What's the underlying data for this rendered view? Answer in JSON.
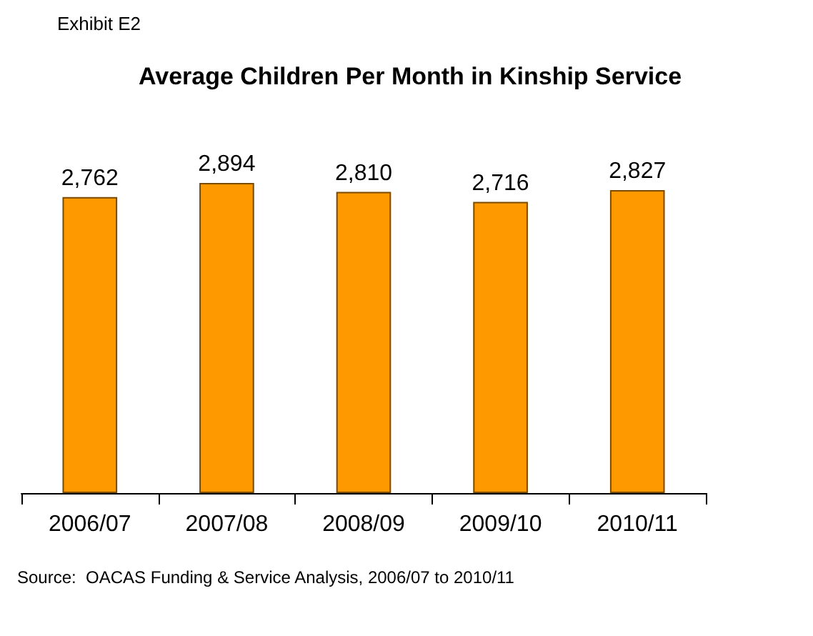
{
  "chart_data": {
    "type": "bar",
    "title": "Average Children Per Month in Kinship Service",
    "categories": [
      "2006/07",
      "2007/08",
      "2008/09",
      "2009/10",
      "2010/11"
    ],
    "values": [
      2762,
      2894,
      2810,
      2716,
      2827
    ],
    "color": "#ff9900",
    "value_labels": [
      "2,762",
      "2,894",
      "2,810",
      "2,716",
      "2,827"
    ],
    "annotations": [
      "Exhibit E2",
      "Source:  OACAS Funding & Service Analysis, 2006/07 to 2010/11"
    ]
  }
}
